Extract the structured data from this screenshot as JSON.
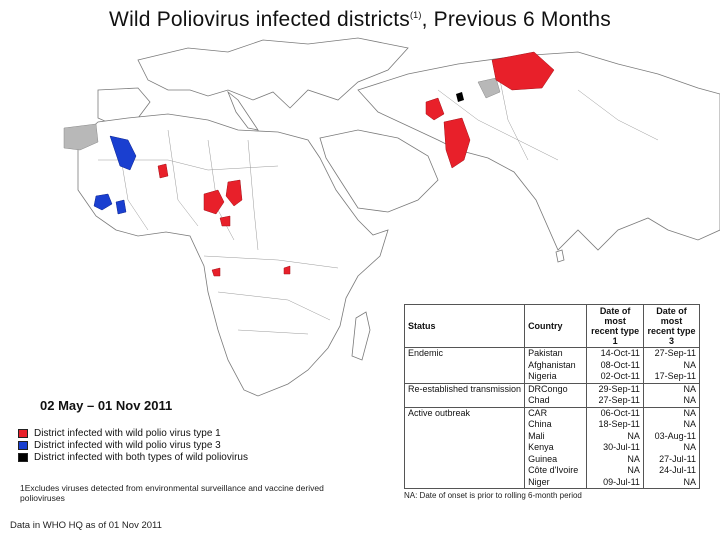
{
  "title": "Wild Poliovirus infected districts",
  "title_mark": "(1)",
  "title_suffix": ", Previous 6 Months",
  "period": "02 May – 01 Nov 2011",
  "legend": [
    {
      "label": "District infected with wild polio virus type 1",
      "color": "#e8202a"
    },
    {
      "label": "District infected with wild polio virus type 3",
      "color": "#1a3fd0"
    },
    {
      "label": "District infected with both types of wild poliovirus",
      "color": "#000000"
    }
  ],
  "footnote": "1Excludes viruses detected from environmental surveillance and vaccine derived polioviruses",
  "source": "Data in WHO HQ as of 01 Nov 2011",
  "table": {
    "headers": {
      "status": "Status",
      "country": "Country",
      "type1": "Date of most recent type 1",
      "type3": "Date of most recent type 3"
    },
    "rows": [
      {
        "status": "Endemic",
        "country": "Pakistan",
        "type1": "14-Oct-11",
        "type3": "27-Sep-11"
      },
      {
        "status": "",
        "country": "Afghanistan",
        "type1": "08-Oct-11",
        "type3": "NA"
      },
      {
        "status": "",
        "country": "Nigeria",
        "type1": "02-Oct-11",
        "type3": "17-Sep-11"
      },
      {
        "status": "Re-established transmission",
        "country": "DRCongo",
        "type1": "29-Sep-11",
        "type3": "NA"
      },
      {
        "status": "",
        "country": "Chad",
        "type1": "27-Sep-11",
        "type3": "NA"
      },
      {
        "status": "Active outbreak",
        "country": "CAR",
        "type1": "06-Oct-11",
        "type3": "NA"
      },
      {
        "status": "",
        "country": "China",
        "type1": "18-Sep-11",
        "type3": "NA"
      },
      {
        "status": "",
        "country": "Mali",
        "type1": "NA",
        "type3": "03-Aug-11"
      },
      {
        "status": "",
        "country": "Kenya",
        "type1": "30-Jul-11",
        "type3": "NA"
      },
      {
        "status": "",
        "country": "Guinea",
        "type1": "NA",
        "type3": "27-Jul-11"
      },
      {
        "status": "",
        "country": "Côte d'Ivoire",
        "type1": "NA",
        "type3": "24-Jul-11"
      },
      {
        "status": "",
        "country": "Niger",
        "type1": "09-Jul-11",
        "type3": "NA"
      }
    ],
    "note": "NA: Date of onset is prior to rolling 6-month period"
  },
  "map": {
    "land_color": "#ffffff",
    "border_color": "#7a7a7a",
    "excluded_color": "#b8b8b8"
  }
}
